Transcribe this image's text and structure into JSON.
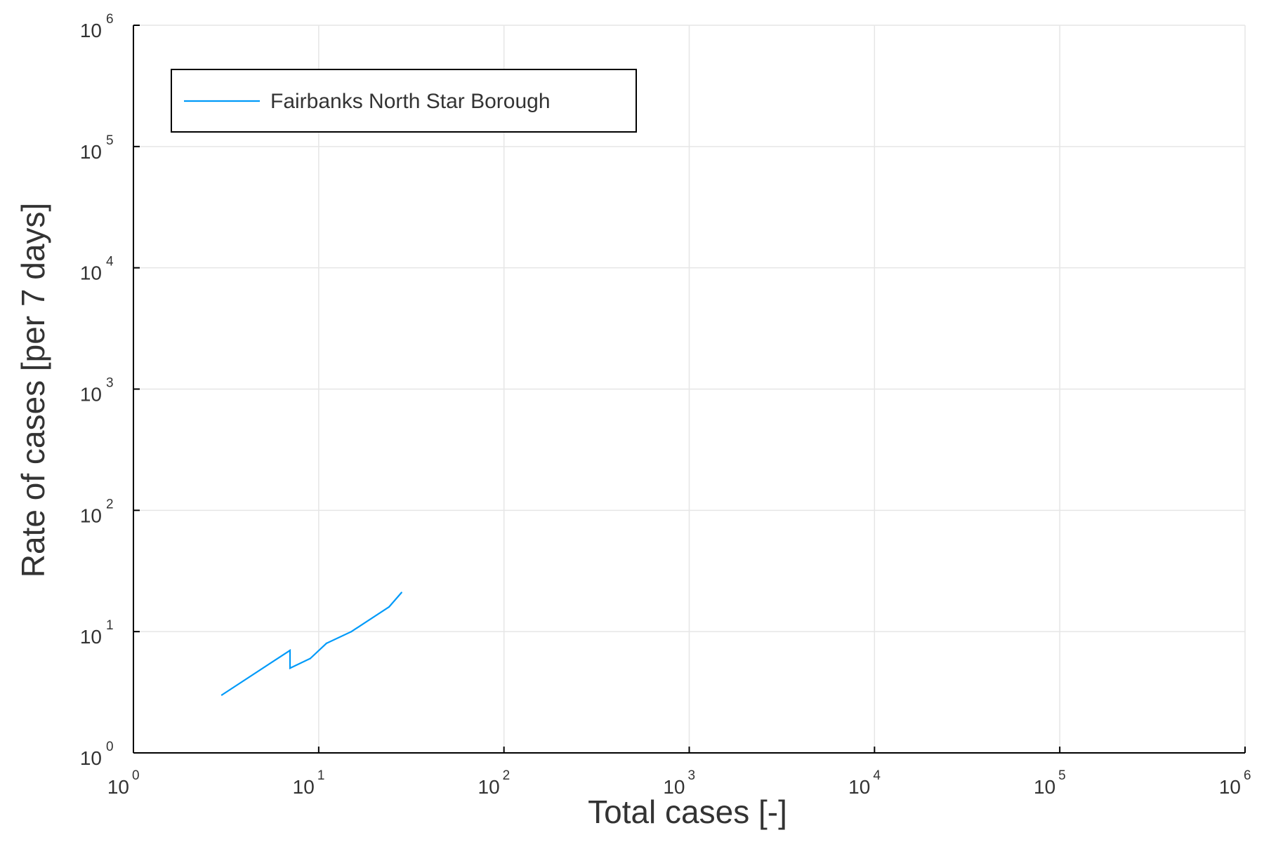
{
  "chart_data": {
    "type": "line",
    "xlabel": "Total cases [-]",
    "ylabel": "Rate of cases [per 7 days]",
    "xscale": "log",
    "yscale": "log",
    "xlim": [
      1,
      1000000
    ],
    "ylim": [
      1,
      1000000
    ],
    "grid": true,
    "legend_position": "top-left",
    "xticks": [
      {
        "base": "10",
        "exp": "0"
      },
      {
        "base": "10",
        "exp": "1"
      },
      {
        "base": "10",
        "exp": "2"
      },
      {
        "base": "10",
        "exp": "3"
      },
      {
        "base": "10",
        "exp": "4"
      },
      {
        "base": "10",
        "exp": "5"
      },
      {
        "base": "10",
        "exp": "6"
      }
    ],
    "yticks": [
      {
        "base": "10",
        "exp": "0"
      },
      {
        "base": "10",
        "exp": "1"
      },
      {
        "base": "10",
        "exp": "2"
      },
      {
        "base": "10",
        "exp": "3"
      },
      {
        "base": "10",
        "exp": "4"
      },
      {
        "base": "10",
        "exp": "5"
      },
      {
        "base": "10",
        "exp": "6"
      }
    ],
    "series": [
      {
        "name": "Fairbanks North Star Borough",
        "color": "#009af9",
        "points": [
          {
            "x": 3,
            "y": 3
          },
          {
            "x": 7,
            "y": 7
          },
          {
            "x": 7,
            "y": 5
          },
          {
            "x": 9,
            "y": 6
          },
          {
            "x": 11,
            "y": 8
          },
          {
            "x": 15,
            "y": 10
          },
          {
            "x": 24,
            "y": 16
          },
          {
            "x": 28,
            "y": 21
          }
        ]
      }
    ]
  }
}
